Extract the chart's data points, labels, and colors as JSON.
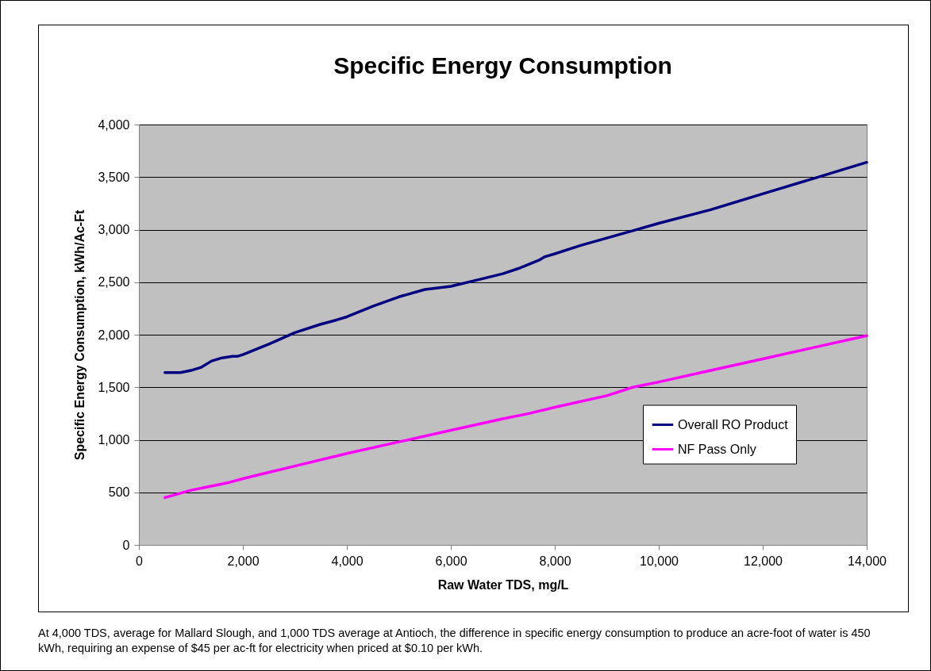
{
  "chart_data": {
    "type": "line",
    "title": "Specific Energy Consumption",
    "xlabel": "Raw Water TDS, mg/L",
    "ylabel": "Specific Energy Consumption, kWh/Ac-Ft",
    "xlim": [
      0,
      14000
    ],
    "xticks": [
      {
        "value": 0,
        "label": "0"
      },
      {
        "value": 2000,
        "label": "2,000"
      },
      {
        "value": 4000,
        "label": "4,000"
      },
      {
        "value": 6000,
        "label": "6,000"
      },
      {
        "value": 8000,
        "label": "8,000"
      },
      {
        "value": 10000,
        "label": "10,000"
      },
      {
        "value": 12000,
        "label": "12,000"
      },
      {
        "value": 14000,
        "label": "14,000"
      }
    ],
    "ylim": [
      0,
      4000
    ],
    "yticks": [
      0,
      500,
      {
        "value": 1000,
        "label": "1,000"
      },
      {
        "value": 1500,
        "label": "1,500"
      },
      {
        "value": 2000,
        "label": "2,000"
      },
      {
        "value": 2500,
        "label": "2,500"
      },
      {
        "value": 3000,
        "label": "3,000"
      },
      {
        "value": 3500,
        "label": "3,500"
      },
      {
        "value": 4000,
        "label": "4,000"
      }
    ],
    "grid": "y",
    "legend": "right",
    "line_style": "solid",
    "marker": "none",
    "series": [
      {
        "name": "Overall RO Product",
        "color": "#000080",
        "x": [
          500,
          800,
          1000,
          1200,
          1400,
          1600,
          1800,
          1900,
          2000,
          2500,
          3000,
          3500,
          3800,
          4000,
          4500,
          5000,
          5500,
          6000,
          6500,
          7000,
          7300,
          7700,
          7800,
          8000,
          8500,
          9000,
          9500,
          10000,
          11000,
          12000,
          13000,
          14000
        ],
        "values": [
          1640,
          1640,
          1660,
          1690,
          1750,
          1780,
          1795,
          1795,
          1810,
          1910,
          2020,
          2100,
          2140,
          2170,
          2270,
          2360,
          2430,
          2460,
          2520,
          2580,
          2630,
          2710,
          2740,
          2770,
          2850,
          2920,
          2990,
          3060,
          3190,
          3340,
          3490,
          3640
        ]
      },
      {
        "name": "NF Pass Only",
        "color": "#ff00ff",
        "x": [
          500,
          1000,
          1500,
          1700,
          2000,
          2500,
          3000,
          4000,
          5000,
          6000,
          7000,
          7500,
          8000,
          9000,
          9500,
          10000,
          11000,
          12000,
          13000,
          14000
        ],
        "values": [
          450,
          520,
          570,
          590,
          630,
          690,
          750,
          870,
          980,
          1090,
          1200,
          1250,
          1310,
          1420,
          1500,
          1550,
          1660,
          1770,
          1880,
          1990
        ]
      }
    ],
    "annotations": [
      "At 4,000 TDS, average for Mallard Slough, and 1,000 TDS average at Antioch, the difference in specific energy consumption to produce an acre-foot of water is 450 kWh, requiring an expense of $45 per ac-ft for electricity when priced at $0.10 per kWh."
    ]
  }
}
